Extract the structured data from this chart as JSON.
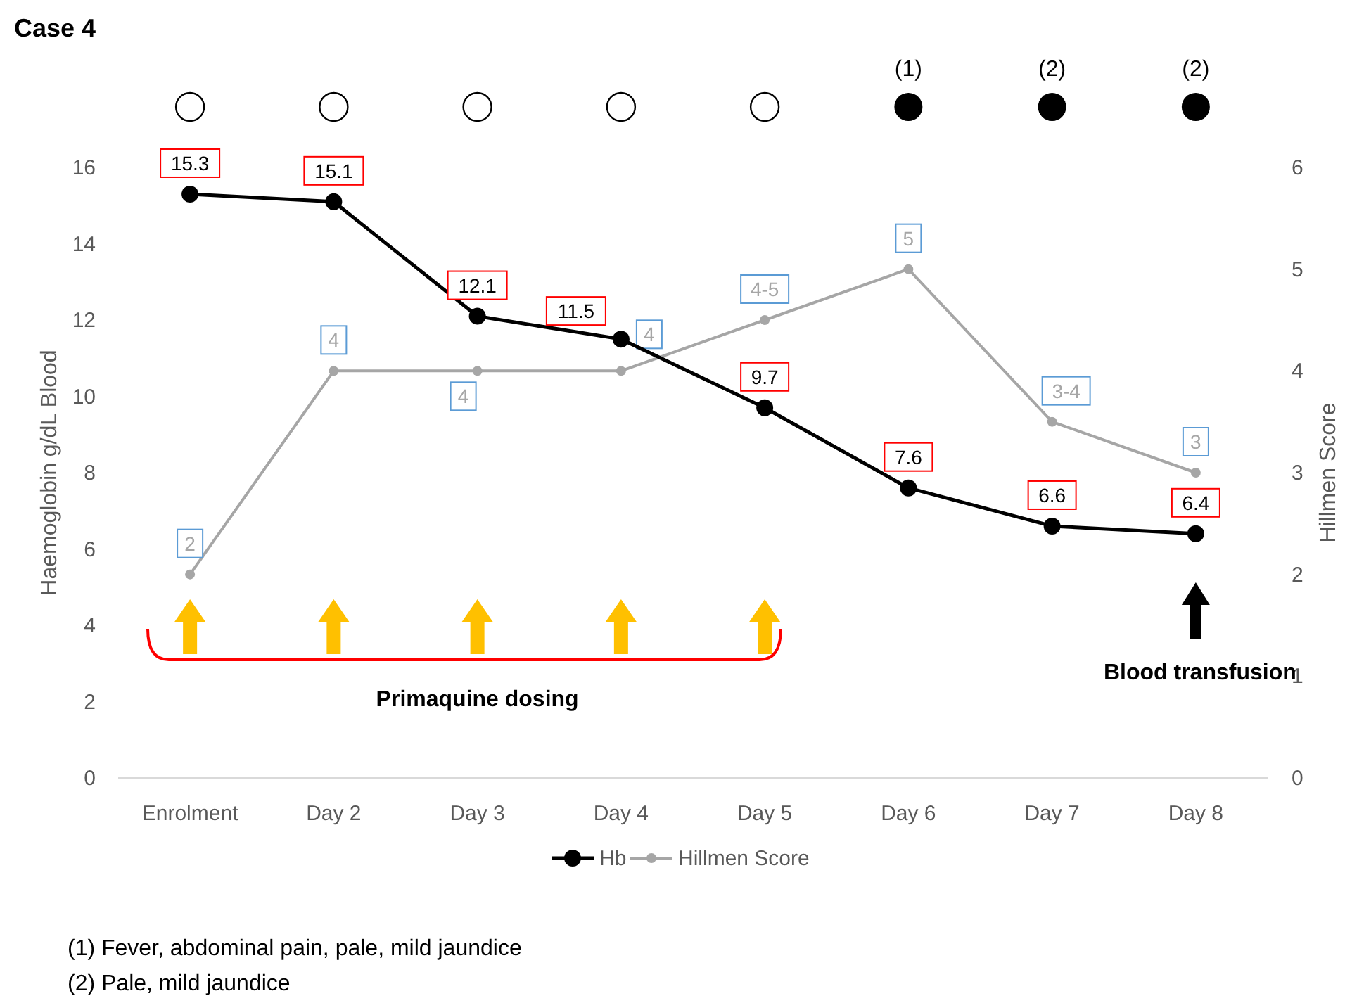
{
  "chart_data": {
    "type": "line",
    "title": "Case 4",
    "ylabel": "Haemoglobin g/dL Blood",
    "y2label": "Hillmen Score",
    "categories": [
      "Enrolment",
      "Day 2",
      "Day 3",
      "Day 4",
      "Day 5",
      "Day 6",
      "Day 7",
      "Day 8"
    ],
    "series": [
      {
        "name": "Hb",
        "color": "#000000",
        "values": [
          15.3,
          15.1,
          12.1,
          11.5,
          9.7,
          7.6,
          6.6,
          6.4
        ],
        "marker": "circle"
      },
      {
        "name": "Hillmen Score",
        "color": "#a6a6a6",
        "values": [
          2,
          4,
          4,
          4,
          4.5,
          5,
          3.5,
          3
        ],
        "axis": "y2",
        "marker": "circle",
        "value_labels": [
          "2",
          "4",
          "4",
          "4",
          "4-5",
          "5",
          "3-4",
          "3"
        ]
      }
    ],
    "data_labels": true,
    "ylim": [
      0,
      16
    ],
    "yticks": [
      0,
      2,
      4,
      6,
      8,
      10,
      12,
      14,
      16
    ],
    "y2lim": [
      0,
      6
    ],
    "y2ticks": [
      0,
      1,
      2,
      3,
      4,
      5,
      6
    ],
    "grid": false,
    "legend": "bottom",
    "line_style": "solid",
    "annotations": [
      "(1)",
      "(2)",
      "(2)",
      "Primaquine dosing",
      "Blood transfusion",
      "(1) Fever, abdominal pain, pale, mild jaundice",
      "(2) Pale, mild jaundice"
    ]
  }
}
